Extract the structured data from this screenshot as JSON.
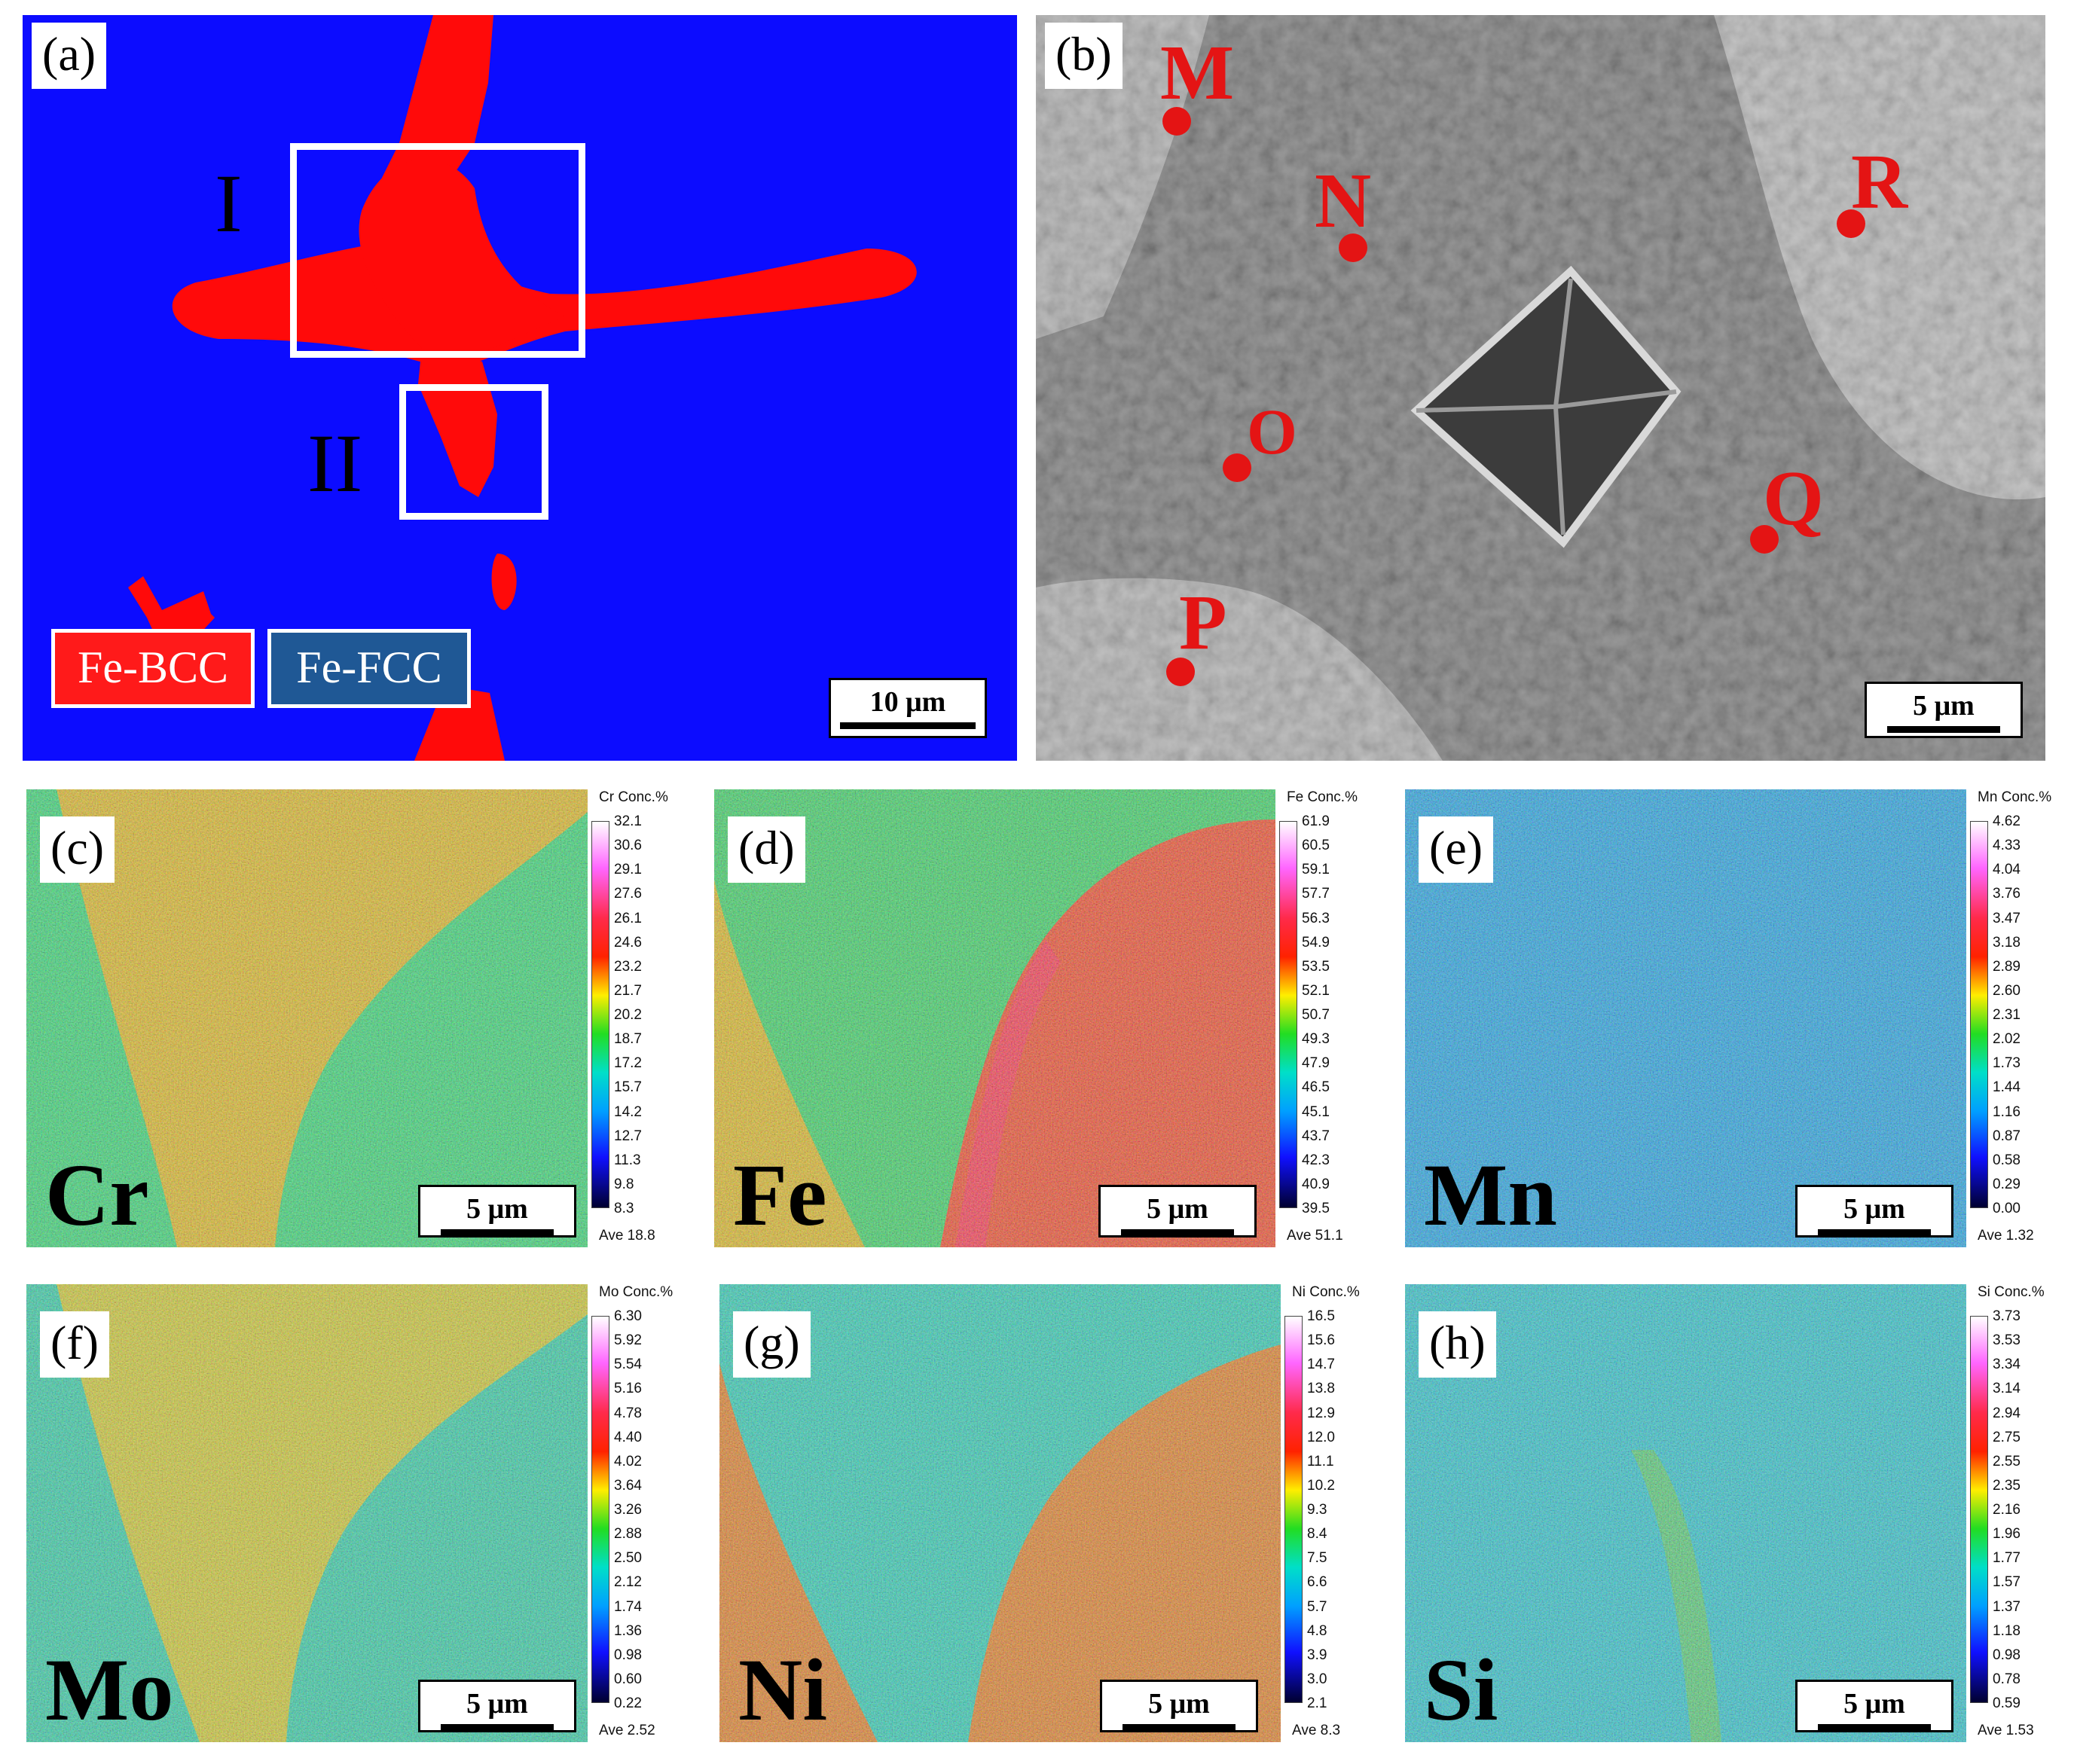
{
  "panel_a": {
    "label": "(a)",
    "region_I": "I",
    "region_II": "II",
    "legend_bcc": "Fe-BCC",
    "legend_fcc": "Fe-FCC",
    "scale": "10 μm",
    "colors": {
      "fcc": "#0c0cff",
      "bcc": "#ff0a0a",
      "legend_fcc_bg": "#1f5895"
    }
  },
  "panel_b": {
    "label": "(b)",
    "points": [
      "M",
      "N",
      "O",
      "P",
      "Q",
      "R"
    ],
    "scale": "5 μm",
    "point_color": "#e41414"
  },
  "maps": [
    {
      "label": "(c)",
      "element": "Cr",
      "title": "Cr  Conc.%",
      "ticks": [
        "32.1",
        "30.6",
        "29.1",
        "27.6",
        "26.1",
        "24.6",
        "23.2",
        "21.7",
        "20.2",
        "18.7",
        "17.2",
        "15.7",
        "14.2",
        "12.7",
        "11.3",
        "9.8",
        "8.3"
      ],
      "ave": "Ave 18.8",
      "scale": "5 μm"
    },
    {
      "label": "(d)",
      "element": "Fe",
      "title": "Fe  Conc.%",
      "ticks": [
        "61.9",
        "60.5",
        "59.1",
        "57.7",
        "56.3",
        "54.9",
        "53.5",
        "52.1",
        "50.7",
        "49.3",
        "47.9",
        "46.5",
        "45.1",
        "43.7",
        "42.3",
        "40.9",
        "39.5"
      ],
      "ave": "Ave 51.1",
      "scale": "5 μm"
    },
    {
      "label": "(e)",
      "element": "Mn",
      "title": "Mn  Conc.%",
      "ticks": [
        "4.62",
        "4.33",
        "4.04",
        "3.76",
        "3.47",
        "3.18",
        "2.89",
        "2.60",
        "2.31",
        "2.02",
        "1.73",
        "1.44",
        "1.16",
        "0.87",
        "0.58",
        "0.29",
        "0.00"
      ],
      "ave": "Ave 1.32",
      "scale": "5 μm"
    },
    {
      "label": "(f)",
      "element": "Mo",
      "title": "Mo  Conc.%",
      "ticks": [
        "6.30",
        "5.92",
        "5.54",
        "5.16",
        "4.78",
        "4.40",
        "4.02",
        "3.64",
        "3.26",
        "2.88",
        "2.50",
        "2.12",
        "1.74",
        "1.36",
        "0.98",
        "0.60",
        "0.22"
      ],
      "ave": "Ave 2.52",
      "scale": "5 μm"
    },
    {
      "label": "(g)",
      "element": "Ni",
      "title": "Ni  Conc.%",
      "ticks": [
        "16.5",
        "15.6",
        "14.7",
        "13.8",
        "12.9",
        "12.0",
        "11.1",
        "10.2",
        "9.3",
        "8.4",
        "7.5",
        "6.6",
        "5.7",
        "4.8",
        "3.9",
        "3.0",
        "2.1"
      ],
      "ave": "Ave 8.3",
      "scale": "5 μm"
    },
    {
      "label": "(h)",
      "element": "Si",
      "title": "Si  Conc.%",
      "ticks": [
        "3.73",
        "3.53",
        "3.34",
        "3.14",
        "2.94",
        "2.75",
        "2.55",
        "2.35",
        "2.16",
        "1.96",
        "1.77",
        "1.57",
        "1.37",
        "1.18",
        "0.98",
        "0.78",
        "0.59"
      ],
      "ave": "Ave 1.53",
      "scale": "5 μm"
    }
  ]
}
